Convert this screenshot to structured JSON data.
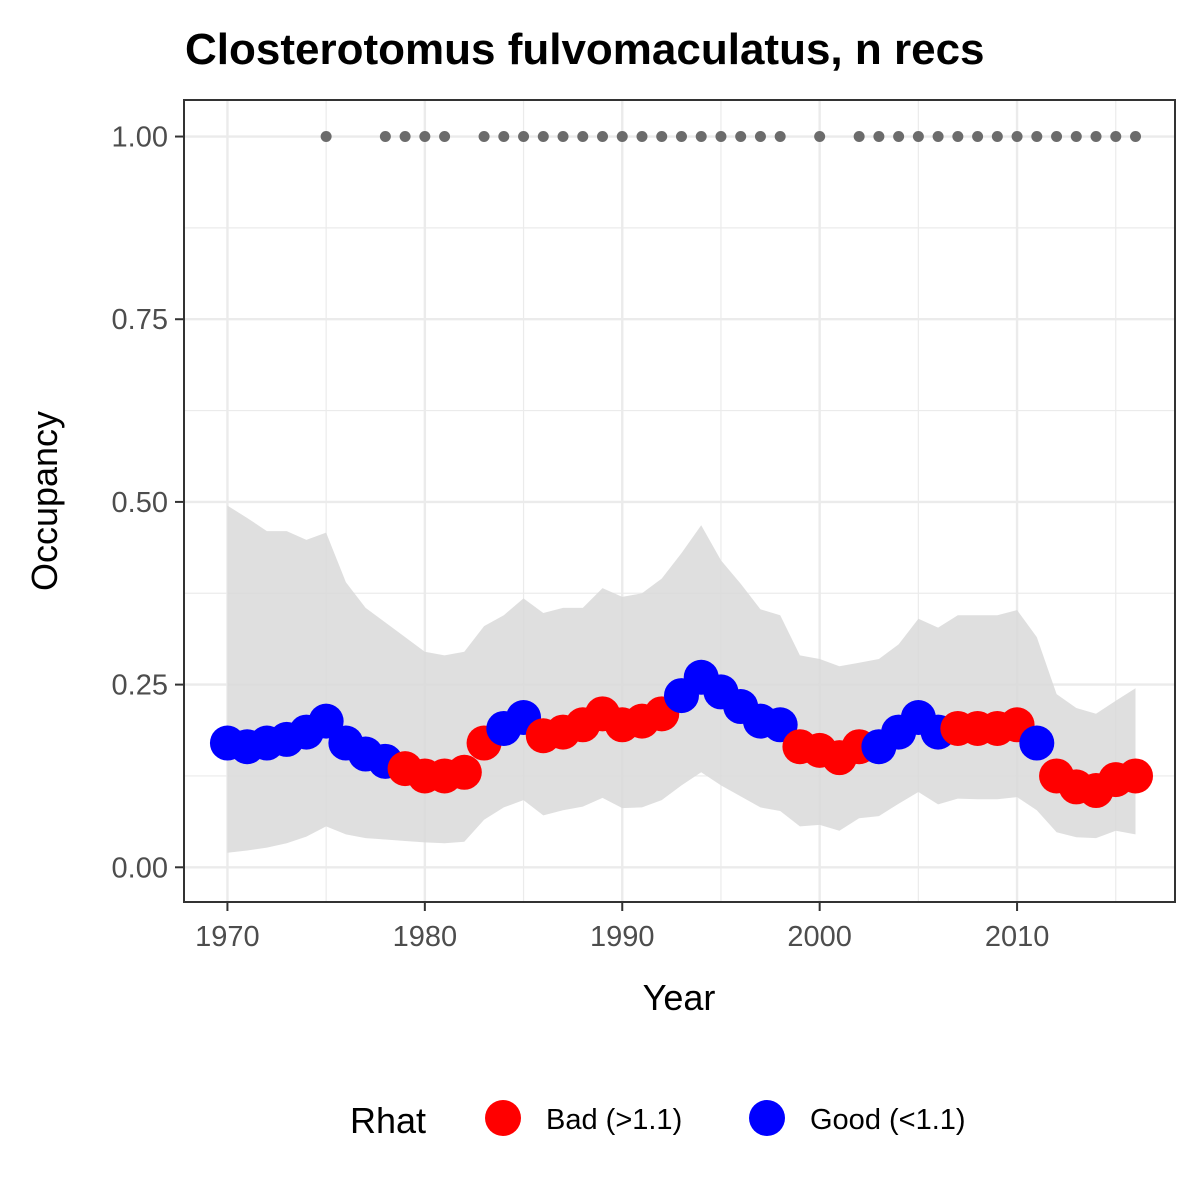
{
  "chart_data": {
    "type": "line",
    "title": "Closterotomus fulvomaculatus, n recs",
    "xlabel": "Year",
    "ylabel": "Occupancy",
    "xlim": [
      1967.8,
      2018
    ],
    "ylim": [
      -0.0475,
      1.05
    ],
    "x_ticks": [
      1970,
      1980,
      1990,
      2000,
      2010
    ],
    "x_tick_labels": [
      "1970",
      "1980",
      "1990",
      "2000",
      "2010"
    ],
    "y_ticks": [
      0,
      0.25,
      0.5,
      0.75,
      1.0
    ],
    "y_tick_labels": [
      "0.00",
      "0.25",
      "0.50",
      "0.75",
      "1.00"
    ],
    "grid": true,
    "x": [
      1970,
      1971,
      1972,
      1973,
      1974,
      1975,
      1976,
      1977,
      1978,
      1979,
      1980,
      1981,
      1982,
      1983,
      1984,
      1985,
      1986,
      1987,
      1988,
      1989,
      1990,
      1991,
      1992,
      1993,
      1994,
      1995,
      1996,
      1997,
      1998,
      1999,
      2000,
      2001,
      2002,
      2003,
      2004,
      2005,
      2006,
      2007,
      2008,
      2009,
      2010,
      2011,
      2012,
      2013,
      2014,
      2015,
      2016
    ],
    "series": [
      {
        "values": [
          0.17,
          0.165,
          0.17,
          0.175,
          0.185,
          0.2,
          0.17,
          0.155,
          0.145,
          0.135,
          0.125,
          0.125,
          0.13,
          0.17,
          0.19,
          0.205,
          0.18,
          0.185,
          0.195,
          0.21,
          0.195,
          0.2,
          0.21,
          0.235,
          0.26,
          0.24,
          0.22,
          0.2,
          0.195,
          0.165,
          0.16,
          0.15,
          0.165,
          0.165,
          0.185,
          0.205,
          0.185,
          0.19,
          0.19,
          0.19,
          0.195,
          0.17,
          0.125,
          0.11,
          0.105,
          0.12,
          0.125
        ],
        "rhat": [
          "Good",
          "Good",
          "Good",
          "Good",
          "Good",
          "Good",
          "Good",
          "Good",
          "Good",
          "Bad",
          "Bad",
          "Bad",
          "Bad",
          "Bad",
          "Good",
          "Good",
          "Bad",
          "Bad",
          "Bad",
          "Bad",
          "Bad",
          "Bad",
          "Bad",
          "Good",
          "Good",
          "Good",
          "Good",
          "Good",
          "Good",
          "Bad",
          "Bad",
          "Bad",
          "Bad",
          "Good",
          "Good",
          "Good",
          "Good",
          "Bad",
          "Bad",
          "Bad",
          "Bad",
          "Good",
          "Bad",
          "Bad",
          "Bad",
          "Bad",
          "Bad"
        ],
        "lower": [
          0.02,
          0.023,
          0.027,
          0.033,
          0.042,
          0.056,
          0.045,
          0.04,
          0.038,
          0.036,
          0.034,
          0.033,
          0.035,
          0.065,
          0.082,
          0.092,
          0.071,
          0.078,
          0.083,
          0.095,
          0.081,
          0.082,
          0.092,
          0.112,
          0.13,
          0.112,
          0.097,
          0.082,
          0.077,
          0.056,
          0.058,
          0.05,
          0.067,
          0.07,
          0.087,
          0.103,
          0.086,
          0.094,
          0.093,
          0.093,
          0.096,
          0.078,
          0.048,
          0.041,
          0.04,
          0.05,
          0.045
        ],
        "upper": [
          0.495,
          0.478,
          0.46,
          0.46,
          0.448,
          0.458,
          0.39,
          0.355,
          0.335,
          0.315,
          0.295,
          0.29,
          0.295,
          0.33,
          0.345,
          0.368,
          0.348,
          0.355,
          0.355,
          0.382,
          0.37,
          0.375,
          0.395,
          0.43,
          0.468,
          0.42,
          0.388,
          0.353,
          0.345,
          0.29,
          0.285,
          0.275,
          0.28,
          0.285,
          0.305,
          0.34,
          0.328,
          0.345,
          0.345,
          0.345,
          0.352,
          0.315,
          0.237,
          0.218,
          0.21,
          0.228,
          0.245
        ]
      }
    ],
    "records_y": 1.0,
    "record_years": [
      1975,
      1978,
      1979,
      1980,
      1981,
      1983,
      1984,
      1985,
      1986,
      1987,
      1988,
      1989,
      1990,
      1991,
      1992,
      1993,
      1994,
      1995,
      1996,
      1997,
      1998,
      2000,
      2002,
      2003,
      2004,
      2005,
      2006,
      2007,
      2008,
      2009,
      2010,
      2011,
      2012,
      2013,
      2014,
      2015,
      2016
    ],
    "legend": {
      "title": "Rhat",
      "position": "bottom",
      "entries": [
        {
          "key": "Bad",
          "label": "Bad (>1.1)",
          "color": "#ff0000"
        },
        {
          "key": "Good",
          "label": "Good (<1.1)",
          "color": "#0000ff"
        }
      ]
    },
    "colors": {
      "bad": "#ff0000",
      "good": "#0000ff",
      "ribbon": "#d9d9d9",
      "records": "#6b6b6b",
      "grid": "#ebebeb",
      "panel_border": "#333333"
    }
  }
}
